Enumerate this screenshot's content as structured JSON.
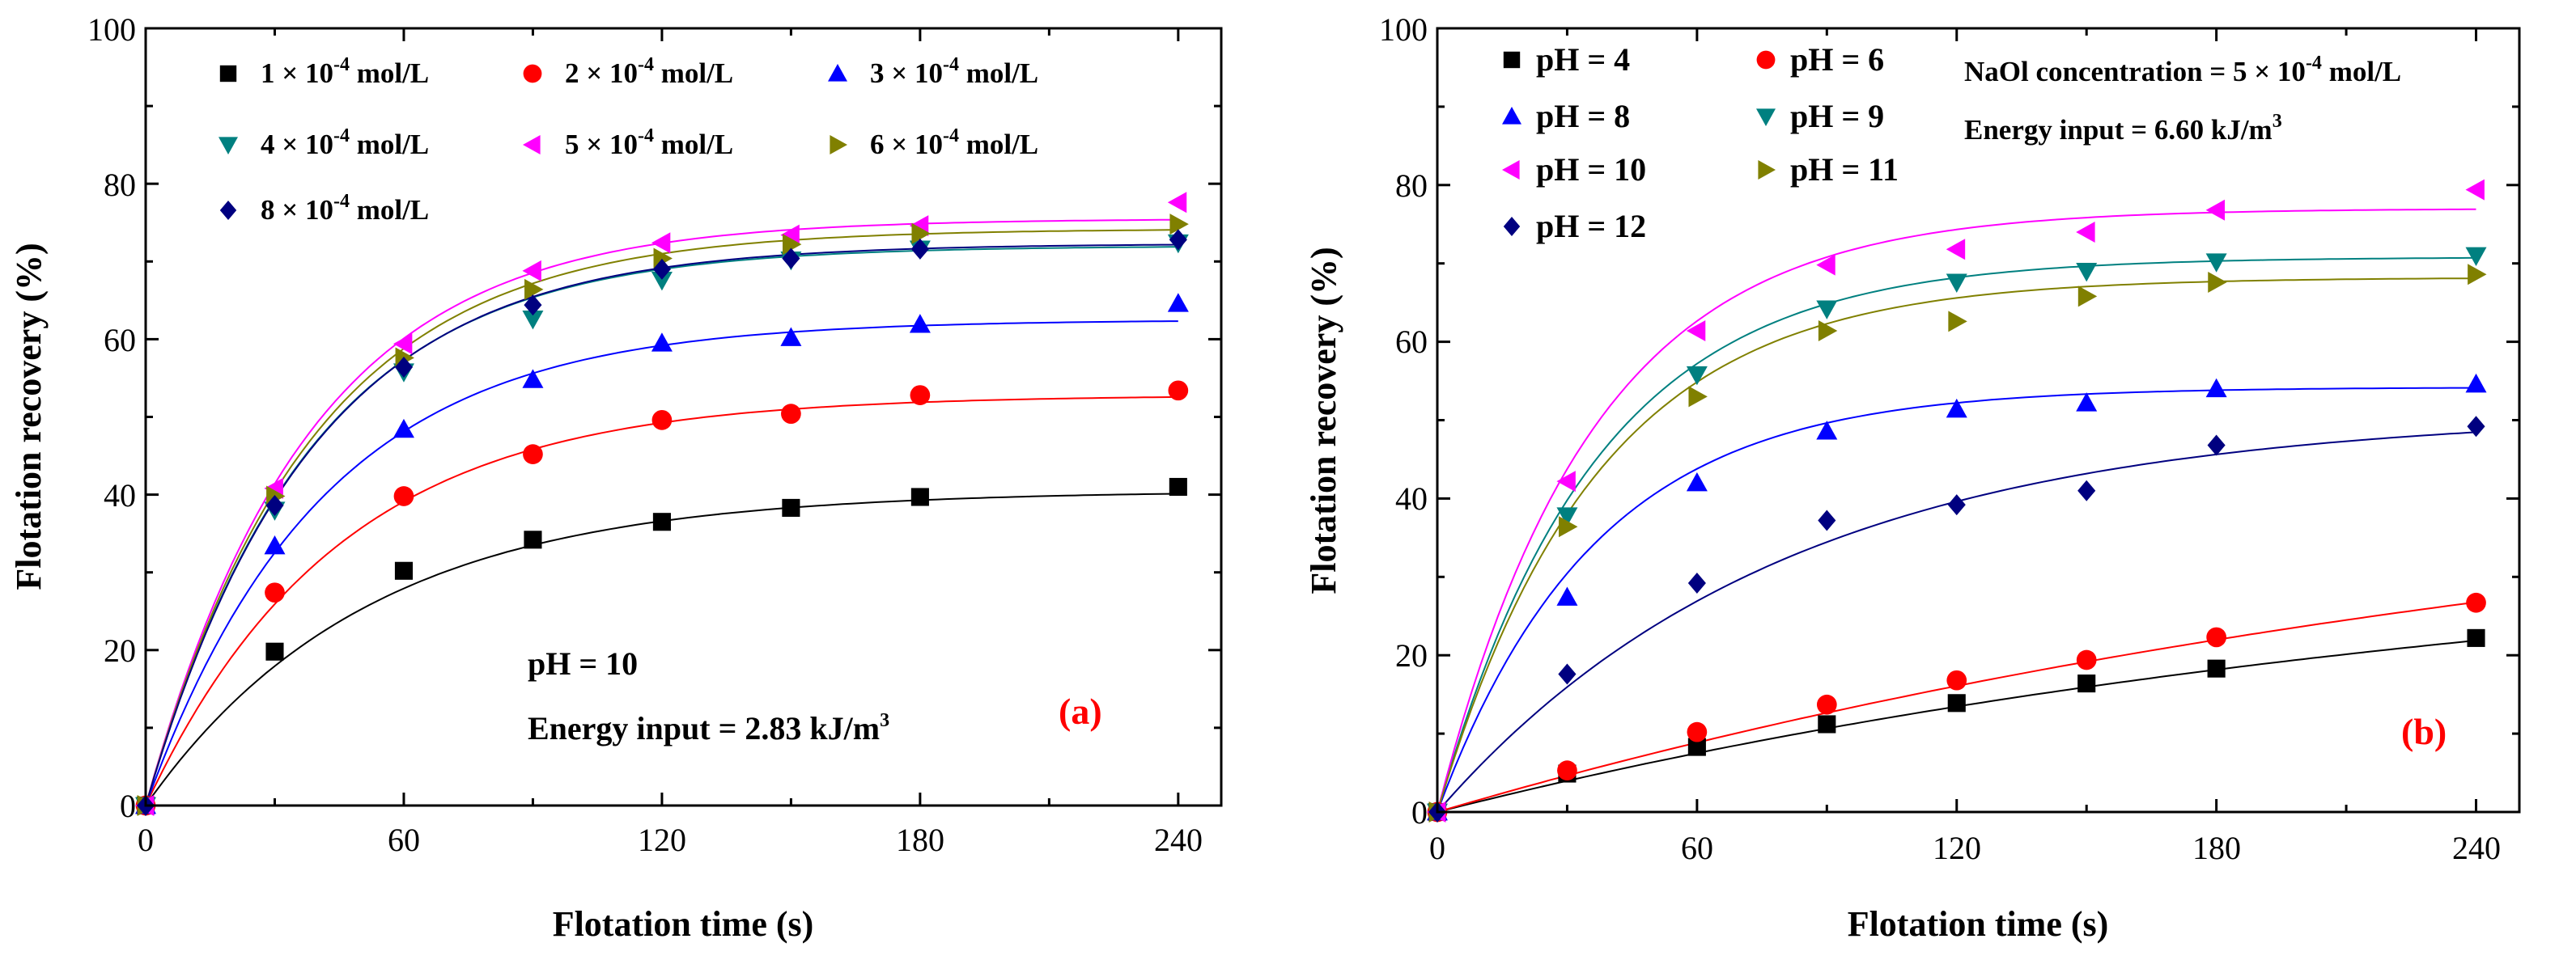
{
  "colors": {
    "black": "#000000",
    "red": "#ff0000",
    "blue": "#0000ff",
    "teal": "#008080",
    "magenta": "#ff00ff",
    "olive": "#808000",
    "navy": "#000080"
  },
  "chart_data": [
    {
      "type": "scatter",
      "panel_label": "(a)",
      "xlabel": "Flotation time (s)",
      "ylabel": "Flotation recovery (%)",
      "xlim": [
        0,
        250
      ],
      "ylim": [
        0,
        100
      ],
      "xticks": [
        "0",
        "60",
        "120",
        "180",
        "240"
      ],
      "yticks": [
        "0",
        "20",
        "40",
        "60",
        "80",
        "100"
      ],
      "legend_placement": "top-left",
      "annotations": {
        "ph": "pH = 10",
        "energy_prefix": "Energy input = 2.83 kJ/m",
        "energy_sup": "3"
      },
      "series": [
        {
          "name": "1 × 10-4 mol/L",
          "label_main": "1 × 10",
          "label_sup": "-4",
          "label_unit": " mol/L",
          "marker": "square",
          "color": "#000000",
          "x": [
            0,
            30,
            60,
            90,
            120,
            150,
            180,
            240
          ],
          "y": [
            0,
            19.8,
            30.2,
            34.2,
            36.5,
            38.3,
            39.7,
            41.0
          ],
          "fit": {
            "rmax": 40.5,
            "k": 0.0195
          }
        },
        {
          "name": "2 × 10-4 mol/L",
          "label_main": "2 × 10",
          "label_sup": "-4",
          "label_unit": " mol/L",
          "marker": "circle",
          "color": "#ff0000",
          "x": [
            0,
            30,
            60,
            90,
            120,
            150,
            180,
            240
          ],
          "y": [
            0,
            27.4,
            39.8,
            45.2,
            49.6,
            50.4,
            52.8,
            53.4
          ],
          "fit": {
            "rmax": 52.8,
            "k": 0.0225
          }
        },
        {
          "name": "3 × 10-4 mol/L",
          "label_main": "3 × 10",
          "label_sup": "-4",
          "label_unit": " mol/L",
          "marker": "triangle-up",
          "color": "#0000ff",
          "x": [
            0,
            30,
            60,
            90,
            120,
            150,
            180,
            240
          ],
          "y": [
            0,
            33.4,
            48.4,
            54.8,
            59.5,
            60.2,
            61.9,
            64.6
          ],
          "fit": {
            "rmax": 62.5,
            "k": 0.0245
          }
        },
        {
          "name": "4 × 10-4 mol/L",
          "label_main": "4 × 10",
          "label_sup": "-4",
          "label_unit": " mol/L",
          "marker": "triangle-down",
          "color": "#008080",
          "x": [
            0,
            30,
            60,
            90,
            120,
            150,
            180,
            240
          ],
          "y": [
            0,
            38.0,
            55.8,
            62.6,
            67.6,
            70.2,
            71.6,
            72.4
          ],
          "fit": {
            "rmax": 72.0,
            "k": 0.0265
          }
        },
        {
          "name": "5 × 10-4 mol/L",
          "label_main": "5 × 10",
          "label_sup": "-4",
          "label_unit": " mol/L",
          "marker": "triangle-left",
          "color": "#ff00ff",
          "x": [
            0,
            30,
            60,
            90,
            120,
            150,
            180,
            240
          ],
          "y": [
            0,
            40.8,
            59.4,
            68.8,
            72.4,
            73.4,
            74.6,
            77.6
          ],
          "fit": {
            "rmax": 75.5,
            "k": 0.0265
          }
        },
        {
          "name": "6 × 10-4 mol/L",
          "label_main": "6 × 10",
          "label_sup": "-4",
          "label_unit": " mol/L",
          "marker": "triangle-right",
          "color": "#808000",
          "x": [
            0,
            30,
            60,
            90,
            120,
            150,
            180,
            240
          ],
          "y": [
            0,
            39.8,
            57.6,
            66.4,
            70.4,
            72.2,
            73.6,
            74.8
          ],
          "fit": {
            "rmax": 74.2,
            "k": 0.0262
          }
        },
        {
          "name": "8 × 10-4 mol/L",
          "label_main": "8 × 10",
          "label_sup": "-4",
          "label_unit": " mol/L",
          "marker": "diamond",
          "color": "#000080",
          "x": [
            0,
            30,
            60,
            90,
            120,
            150,
            180,
            240
          ],
          "y": [
            0,
            38.6,
            56.4,
            64.4,
            69.0,
            70.4,
            71.6,
            72.8
          ],
          "fit": {
            "rmax": 72.3,
            "k": 0.0262
          }
        }
      ]
    },
    {
      "type": "scatter",
      "panel_label": "(b)",
      "xlabel": "Flotation time (s)",
      "ylabel": "Flotation recovery (%)",
      "xlim": [
        0,
        250
      ],
      "ylim": [
        0,
        100
      ],
      "xticks": [
        "0",
        "60",
        "120",
        "180",
        "240"
      ],
      "yticks": [
        "0",
        "20",
        "40",
        "60",
        "80",
        "100"
      ],
      "legend_placement": "top-left",
      "annotations": {
        "naol_prefix": "NaOl concentration = 5 × 10",
        "naol_sup": "-4",
        "naol_unit": " mol/L",
        "energy_prefix": "Energy input = 6.60 kJ/m",
        "energy_sup": "3"
      },
      "series": [
        {
          "name": "pH = 4",
          "marker": "square",
          "color": "#000000",
          "x": [
            0,
            30,
            60,
            90,
            120,
            150,
            180,
            240
          ],
          "y": [
            0,
            4.9,
            8.3,
            11.2,
            13.9,
            16.4,
            18.3,
            22.2
          ],
          "fit": {
            "rmax": 36.0,
            "k": 0.0039
          }
        },
        {
          "name": "pH = 6",
          "marker": "circle",
          "color": "#ff0000",
          "x": [
            0,
            30,
            60,
            90,
            120,
            150,
            180,
            240
          ],
          "y": [
            0,
            5.3,
            10.2,
            13.7,
            16.8,
            19.4,
            22.3,
            26.7
          ],
          "fit": {
            "rmax": 48.0,
            "k": 0.0034
          }
        },
        {
          "name": "pH = 8",
          "marker": "triangle-up",
          "color": "#0000ff",
          "x": [
            0,
            30,
            60,
            90,
            120,
            150,
            180,
            240
          ],
          "y": [
            0,
            27.4,
            42.0,
            48.6,
            51.4,
            52.2,
            54.0,
            54.6
          ],
          "fit": {
            "rmax": 54.2,
            "k": 0.0275
          }
        },
        {
          "name": "pH = 9",
          "marker": "triangle-down",
          "color": "#008080",
          "x": [
            0,
            30,
            60,
            90,
            120,
            150,
            180,
            240
          ],
          "y": [
            0,
            37.8,
            55.8,
            64.2,
            67.6,
            69.0,
            70.2,
            71.0
          ],
          "fit": {
            "rmax": 70.8,
            "k": 0.0275
          }
        },
        {
          "name": "pH = 10",
          "marker": "triangle-left",
          "color": "#ff00ff",
          "x": [
            0,
            30,
            60,
            90,
            120,
            150,
            180,
            240
          ],
          "y": [
            0,
            42.2,
            61.4,
            69.8,
            71.8,
            74.0,
            76.8,
            79.4
          ],
          "fit": {
            "rmax": 77.0,
            "k": 0.028
          }
        },
        {
          "name": "pH = 11",
          "marker": "triangle-right",
          "color": "#808000",
          "x": [
            0,
            30,
            60,
            90,
            120,
            150,
            180,
            240
          ],
          "y": [
            0,
            36.4,
            53.0,
            61.4,
            62.6,
            65.8,
            67.6,
            68.6
          ],
          "fit": {
            "rmax": 68.2,
            "k": 0.0272
          }
        },
        {
          "name": "pH = 12",
          "marker": "diamond",
          "color": "#000080",
          "x": [
            0,
            30,
            60,
            90,
            120,
            150,
            180,
            240
          ],
          "y": [
            0,
            17.6,
            29.2,
            37.2,
            39.2,
            41.0,
            46.8,
            49.2
          ],
          "fit": {
            "rmax": 51.0,
            "k": 0.0125
          }
        }
      ]
    }
  ]
}
